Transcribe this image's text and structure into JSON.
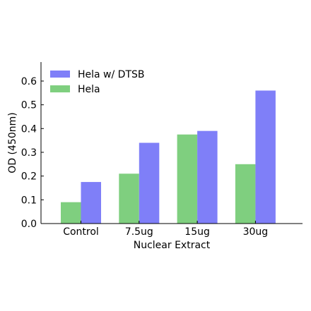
{
  "chart_data": {
    "type": "bar",
    "title": "",
    "xlabel": "Nuclear Extract",
    "ylabel": "OD (450nm)",
    "categories": [
      "Control",
      "7.5ug",
      "15ug",
      "30ug"
    ],
    "series": [
      {
        "name": "Hela",
        "values": [
          0.09,
          0.21,
          0.375,
          0.25
        ],
        "color": "#7fcf7f"
      },
      {
        "name": "Hela w/ DTSB",
        "values": [
          0.175,
          0.34,
          0.39,
          0.56
        ],
        "color": "#7f7ff8"
      }
    ],
    "ylim": [
      0,
      0.68
    ],
    "yticks": [
      "0.0",
      "0.1",
      "0.2",
      "0.3",
      "0.4",
      "0.5",
      "0.6"
    ],
    "legend_order": [
      "Hela w/ DTSB",
      "Hela"
    ],
    "legend_position": "top-left",
    "grid": false
  }
}
